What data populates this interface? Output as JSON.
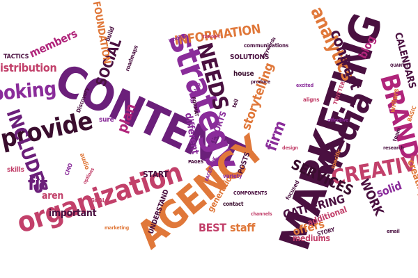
{
  "colors": {
    "purple": "#6b1f7a",
    "magenta": "#b0247a",
    "orange": "#e0783a",
    "plum": "#4a1040",
    "rose": "#c2406a",
    "dark": "#3a0d2e",
    "violet": "#8a2c9a"
  },
  "words": [
    {
      "text": "CONTENT",
      "color": "purple"
    },
    {
      "text": "MARKETING",
      "color": "plum"
    },
    {
      "text": "strategy",
      "color": "violet"
    },
    {
      "text": "AGENCY",
      "color": "orange"
    },
    {
      "text": "organization",
      "color": "rose"
    },
    {
      "text": "Media",
      "color": "plum"
    },
    {
      "text": "provide",
      "color": "dark"
    },
    {
      "text": "BRAND",
      "color": "magenta"
    },
    {
      "text": "CREATIVE",
      "color": "rose"
    },
    {
      "text": "INCLUDES",
      "color": "purple"
    },
    {
      "text": "NEEDS",
      "color": "plum"
    },
    {
      "text": "analytics",
      "color": "orange"
    },
    {
      "text": "SOCIAL",
      "color": "plum"
    },
    {
      "text": "INFORMATION",
      "color": "orange"
    },
    {
      "text": "SERVICES",
      "color": "dark"
    },
    {
      "text": "contract",
      "color": "plum"
    },
    {
      "text": "storytelling",
      "color": "orange"
    },
    {
      "text": "fit",
      "color": "purple"
    },
    {
      "text": "looking",
      "color": "violet"
    },
    {
      "text": "distribution",
      "color": "rose"
    },
    {
      "text": "WORK",
      "color": "plum"
    },
    {
      "text": "plan",
      "color": "magenta"
    },
    {
      "text": "firm",
      "color": "violet"
    },
    {
      "text": "blog",
      "color": "magenta"
    },
    {
      "text": "members",
      "color": "magenta"
    },
    {
      "text": "BEST",
      "color": "rose"
    },
    {
      "text": "staff",
      "color": "orange"
    },
    {
      "text": "offers",
      "color": "orange"
    },
    {
      "text": "GATHERING",
      "color": "plum"
    },
    {
      "text": "solid",
      "color": "violet"
    },
    {
      "text": "important",
      "color": "plum"
    },
    {
      "text": "aren",
      "color": "rose"
    },
    {
      "text": "CALENDARS",
      "color": "plum"
    },
    {
      "text": "FOUNDATION",
      "color": "orange"
    },
    {
      "text": "different",
      "color": "violet"
    },
    {
      "text": "START",
      "color": "plum"
    },
    {
      "text": "generation",
      "color": "orange"
    },
    {
      "text": "additional",
      "color": "rose"
    },
    {
      "text": "mediums",
      "color": "rose"
    },
    {
      "text": "SOLUTIONS",
      "color": "plum"
    },
    {
      "text": "REPORTS",
      "color": "violet"
    },
    {
      "text": "POSTS",
      "color": "plum"
    },
    {
      "text": "UNDERSTAND",
      "color": "plum"
    },
    {
      "text": "house",
      "color": "dark"
    },
    {
      "text": "creating",
      "color": "orange"
    },
    {
      "text": "skills",
      "color": "rose"
    },
    {
      "text": "TACTICS",
      "color": "plum"
    },
    {
      "text": "sure",
      "color": "violet"
    },
    {
      "text": "roadmaps",
      "color": "plum"
    },
    {
      "text": "communications",
      "color": "plum"
    },
    {
      "text": "TWITTER",
      "color": "rose"
    },
    {
      "text": "writers",
      "color": "orange"
    },
    {
      "text": "STORY",
      "color": "plum"
    },
    {
      "text": "contact",
      "color": "dark"
    },
    {
      "text": "CMO",
      "color": "violet"
    },
    {
      "text": "GOALS",
      "color": "rose"
    },
    {
      "text": "build",
      "color": "plum"
    },
    {
      "text": "focused",
      "color": "plum"
    },
    {
      "text": "specific",
      "color": "orange"
    },
    {
      "text": "team",
      "color": "plum"
    },
    {
      "text": "develop",
      "color": "violet"
    },
    {
      "text": "audio",
      "color": "orange"
    },
    {
      "text": "Discovery",
      "color": "plum"
    },
    {
      "text": "TARGET",
      "color": "rose"
    },
    {
      "text": "COMPONENTS",
      "color": "plum"
    },
    {
      "text": "landing",
      "color": "violet"
    },
    {
      "text": "tell",
      "color": "plum"
    },
    {
      "text": "variety",
      "color": "violet"
    },
    {
      "text": "QUANTITY",
      "color": "plum"
    },
    {
      "text": "aligns",
      "color": "rose"
    },
    {
      "text": "produce",
      "color": "plum"
    },
    {
      "text": "excited",
      "color": "violet"
    },
    {
      "text": "keywords",
      "color": "plum"
    },
    {
      "text": "options",
      "color": "rose"
    },
    {
      "text": "FORMAT",
      "color": "plum"
    },
    {
      "text": "BASIC",
      "color": "orange"
    },
    {
      "text": "effective",
      "color": "violet"
    },
    {
      "text": "PAGES",
      "color": "plum"
    },
    {
      "text": "channels",
      "color": "rose"
    },
    {
      "text": "email",
      "color": "plum"
    },
    {
      "text": "marketing",
      "color": "orange"
    },
    {
      "text": "FACEBOOK",
      "color": "violet"
    },
    {
      "text": "design",
      "color": "rose"
    },
    {
      "text": "research",
      "color": "plum"
    }
  ]
}
